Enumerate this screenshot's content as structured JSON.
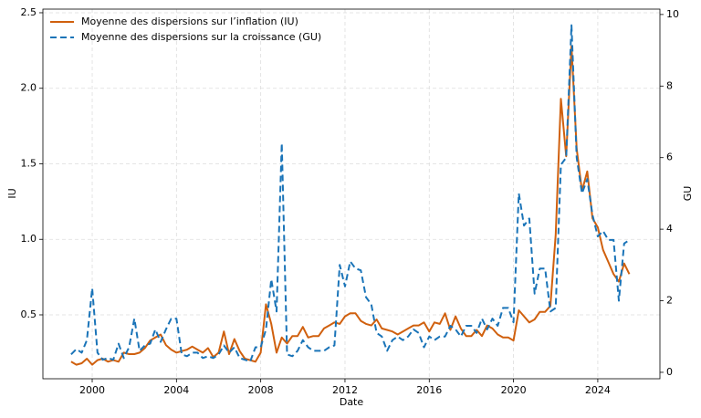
{
  "chart_data": {
    "type": "line",
    "x": [
      1999,
      1999.25,
      1999.5,
      1999.75,
      2000,
      2000.25,
      2000.5,
      2000.75,
      2001,
      2001.25,
      2001.5,
      2001.75,
      2002,
      2002.25,
      2002.5,
      2002.75,
      2003,
      2003.25,
      2003.5,
      2003.75,
      2004,
      2004.25,
      2004.5,
      2004.75,
      2005,
      2005.25,
      2005.5,
      2005.75,
      2006,
      2006.25,
      2006.5,
      2006.75,
      2007,
      2007.25,
      2007.5,
      2007.75,
      2008,
      2008.25,
      2008.5,
      2008.75,
      2009,
      2009.25,
      2009.5,
      2009.75,
      2010,
      2010.25,
      2010.5,
      2010.75,
      2011,
      2011.25,
      2011.5,
      2011.75,
      2012,
      2012.25,
      2012.5,
      2012.75,
      2013,
      2013.25,
      2013.5,
      2013.75,
      2014,
      2014.25,
      2014.5,
      2014.75,
      2015,
      2015.25,
      2015.5,
      2015.75,
      2016,
      2016.25,
      2016.5,
      2016.75,
      2017,
      2017.25,
      2017.5,
      2017.75,
      2018,
      2018.25,
      2018.5,
      2018.75,
      2019,
      2019.25,
      2019.5,
      2019.75,
      2020,
      2020.25,
      2020.5,
      2020.75,
      2021,
      2021.25,
      2021.5,
      2021.75,
      2022,
      2022.25,
      2022.5,
      2022.75,
      2023,
      2023.25,
      2023.5,
      2023.75,
      2024,
      2024.25,
      2024.5,
      2024.75,
      2025,
      2025.25,
      2025.5
    ],
    "series": [
      {
        "name": "Moyenne des dispersions sur l’inflation (IU)",
        "color": "#d0600e",
        "dash": false,
        "axis": "y",
        "values": [
          0.19,
          0.17,
          0.18,
          0.21,
          0.17,
          0.2,
          0.21,
          0.19,
          0.2,
          0.19,
          0.25,
          0.24,
          0.24,
          0.25,
          0.28,
          0.33,
          0.35,
          0.37,
          0.3,
          0.27,
          0.25,
          0.26,
          0.27,
          0.29,
          0.27,
          0.25,
          0.28,
          0.22,
          0.25,
          0.39,
          0.24,
          0.34,
          0.26,
          0.21,
          0.2,
          0.19,
          0.25,
          0.57,
          0.44,
          0.25,
          0.35,
          0.31,
          0.36,
          0.36,
          0.42,
          0.35,
          0.36,
          0.36,
          0.41,
          0.43,
          0.45,
          0.44,
          0.49,
          0.51,
          0.51,
          0.46,
          0.44,
          0.43,
          0.47,
          0.41,
          0.4,
          0.39,
          0.37,
          0.39,
          0.41,
          0.43,
          0.43,
          0.45,
          0.39,
          0.45,
          0.44,
          0.51,
          0.4,
          0.49,
          0.41,
          0.36,
          0.36,
          0.4,
          0.36,
          0.43,
          0.41,
          0.37,
          0.35,
          0.35,
          0.33,
          0.53,
          0.49,
          0.45,
          0.47,
          0.52,
          0.52,
          0.56,
          1.03,
          1.93,
          1.55,
          2.28,
          1.6,
          1.32,
          1.45,
          1.14,
          1.08,
          0.93,
          0.85,
          0.77,
          0.72,
          0.84,
          0.77
        ]
      },
      {
        "name": "Moyenne des dispersions sur la croissance (GU)",
        "color": "#1a74b8",
        "dash": true,
        "axis": "y2",
        "values": [
          0.5,
          0.65,
          0.55,
          0.9,
          2.35,
          0.55,
          0.35,
          0.4,
          0.35,
          0.8,
          0.4,
          0.7,
          1.5,
          0.6,
          0.75,
          0.8,
          1.2,
          0.85,
          1.2,
          1.5,
          1.5,
          0.5,
          0.45,
          0.55,
          0.55,
          0.4,
          0.45,
          0.4,
          0.5,
          0.75,
          0.55,
          0.7,
          0.4,
          0.35,
          0.3,
          0.7,
          0.7,
          1.2,
          2.6,
          1.7,
          6.4,
          0.5,
          0.45,
          0.6,
          0.9,
          0.7,
          0.6,
          0.6,
          0.6,
          0.7,
          0.75,
          3.0,
          2.4,
          3.1,
          2.9,
          2.85,
          2.1,
          1.9,
          1.1,
          1.0,
          0.6,
          0.9,
          1.0,
          0.9,
          1.0,
          1.2,
          1.1,
          0.7,
          1.0,
          0.9,
          1.0,
          1.0,
          1.3,
          1.2,
          1.0,
          1.3,
          1.3,
          1.1,
          1.5,
          1.2,
          1.5,
          1.3,
          1.8,
          1.8,
          1.4,
          5.0,
          4.1,
          4.3,
          2.2,
          2.9,
          2.9,
          1.7,
          1.8,
          5.8,
          6.0,
          9.7,
          6.0,
          5.0,
          5.4,
          4.4,
          3.8,
          3.95,
          3.7,
          3.7,
          2.0,
          3.6,
          3.7
        ]
      }
    ],
    "x_label": "Date",
    "y_label": "IU",
    "y2_label": "GU",
    "xlim": [
      1997.66,
      2026.95
    ],
    "xticks": [
      2000,
      2004,
      2008,
      2012,
      2016,
      2020,
      2024
    ],
    "ylim": [
      0.077,
      2.524
    ],
    "yticks": [
      0.5,
      {
        "value": 1.0,
        "label": "1.0"
      },
      1.5,
      {
        "value": 2.0,
        "label": "2.0"
      },
      2.5
    ],
    "y2lim": [
      -0.18,
      10.15
    ],
    "y2ticks": [
      0,
      2,
      4,
      6,
      8,
      10
    ],
    "grid": true,
    "legend": "upper-left"
  }
}
